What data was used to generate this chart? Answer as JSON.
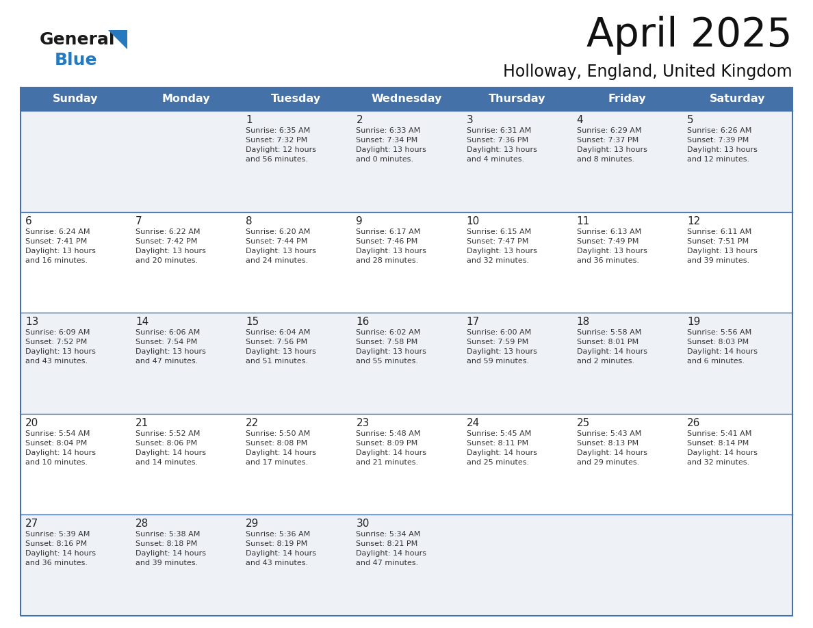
{
  "title": "April 2025",
  "subtitle": "Holloway, England, United Kingdom",
  "header_color": "#4472a8",
  "header_text_color": "#ffffff",
  "cell_bg_even": "#eef2f7",
  "cell_bg_odd": "#ffffff",
  "border_color": "#4472a8",
  "days_of_week": [
    "Sunday",
    "Monday",
    "Tuesday",
    "Wednesday",
    "Thursday",
    "Friday",
    "Saturday"
  ],
  "weeks": [
    [
      {
        "day": "",
        "info": ""
      },
      {
        "day": "",
        "info": ""
      },
      {
        "day": "1",
        "info": "Sunrise: 6:35 AM\nSunset: 7:32 PM\nDaylight: 12 hours\nand 56 minutes."
      },
      {
        "day": "2",
        "info": "Sunrise: 6:33 AM\nSunset: 7:34 PM\nDaylight: 13 hours\nand 0 minutes."
      },
      {
        "day": "3",
        "info": "Sunrise: 6:31 AM\nSunset: 7:36 PM\nDaylight: 13 hours\nand 4 minutes."
      },
      {
        "day": "4",
        "info": "Sunrise: 6:29 AM\nSunset: 7:37 PM\nDaylight: 13 hours\nand 8 minutes."
      },
      {
        "day": "5",
        "info": "Sunrise: 6:26 AM\nSunset: 7:39 PM\nDaylight: 13 hours\nand 12 minutes."
      }
    ],
    [
      {
        "day": "6",
        "info": "Sunrise: 6:24 AM\nSunset: 7:41 PM\nDaylight: 13 hours\nand 16 minutes."
      },
      {
        "day": "7",
        "info": "Sunrise: 6:22 AM\nSunset: 7:42 PM\nDaylight: 13 hours\nand 20 minutes."
      },
      {
        "day": "8",
        "info": "Sunrise: 6:20 AM\nSunset: 7:44 PM\nDaylight: 13 hours\nand 24 minutes."
      },
      {
        "day": "9",
        "info": "Sunrise: 6:17 AM\nSunset: 7:46 PM\nDaylight: 13 hours\nand 28 minutes."
      },
      {
        "day": "10",
        "info": "Sunrise: 6:15 AM\nSunset: 7:47 PM\nDaylight: 13 hours\nand 32 minutes."
      },
      {
        "day": "11",
        "info": "Sunrise: 6:13 AM\nSunset: 7:49 PM\nDaylight: 13 hours\nand 36 minutes."
      },
      {
        "day": "12",
        "info": "Sunrise: 6:11 AM\nSunset: 7:51 PM\nDaylight: 13 hours\nand 39 minutes."
      }
    ],
    [
      {
        "day": "13",
        "info": "Sunrise: 6:09 AM\nSunset: 7:52 PM\nDaylight: 13 hours\nand 43 minutes."
      },
      {
        "day": "14",
        "info": "Sunrise: 6:06 AM\nSunset: 7:54 PM\nDaylight: 13 hours\nand 47 minutes."
      },
      {
        "day": "15",
        "info": "Sunrise: 6:04 AM\nSunset: 7:56 PM\nDaylight: 13 hours\nand 51 minutes."
      },
      {
        "day": "16",
        "info": "Sunrise: 6:02 AM\nSunset: 7:58 PM\nDaylight: 13 hours\nand 55 minutes."
      },
      {
        "day": "17",
        "info": "Sunrise: 6:00 AM\nSunset: 7:59 PM\nDaylight: 13 hours\nand 59 minutes."
      },
      {
        "day": "18",
        "info": "Sunrise: 5:58 AM\nSunset: 8:01 PM\nDaylight: 14 hours\nand 2 minutes."
      },
      {
        "day": "19",
        "info": "Sunrise: 5:56 AM\nSunset: 8:03 PM\nDaylight: 14 hours\nand 6 minutes."
      }
    ],
    [
      {
        "day": "20",
        "info": "Sunrise: 5:54 AM\nSunset: 8:04 PM\nDaylight: 14 hours\nand 10 minutes."
      },
      {
        "day": "21",
        "info": "Sunrise: 5:52 AM\nSunset: 8:06 PM\nDaylight: 14 hours\nand 14 minutes."
      },
      {
        "day": "22",
        "info": "Sunrise: 5:50 AM\nSunset: 8:08 PM\nDaylight: 14 hours\nand 17 minutes."
      },
      {
        "day": "23",
        "info": "Sunrise: 5:48 AM\nSunset: 8:09 PM\nDaylight: 14 hours\nand 21 minutes."
      },
      {
        "day": "24",
        "info": "Sunrise: 5:45 AM\nSunset: 8:11 PM\nDaylight: 14 hours\nand 25 minutes."
      },
      {
        "day": "25",
        "info": "Sunrise: 5:43 AM\nSunset: 8:13 PM\nDaylight: 14 hours\nand 29 minutes."
      },
      {
        "day": "26",
        "info": "Sunrise: 5:41 AM\nSunset: 8:14 PM\nDaylight: 14 hours\nand 32 minutes."
      }
    ],
    [
      {
        "day": "27",
        "info": "Sunrise: 5:39 AM\nSunset: 8:16 PM\nDaylight: 14 hours\nand 36 minutes."
      },
      {
        "day": "28",
        "info": "Sunrise: 5:38 AM\nSunset: 8:18 PM\nDaylight: 14 hours\nand 39 minutes."
      },
      {
        "day": "29",
        "info": "Sunrise: 5:36 AM\nSunset: 8:19 PM\nDaylight: 14 hours\nand 43 minutes."
      },
      {
        "day": "30",
        "info": "Sunrise: 5:34 AM\nSunset: 8:21 PM\nDaylight: 14 hours\nand 47 minutes."
      },
      {
        "day": "",
        "info": ""
      },
      {
        "day": "",
        "info": ""
      },
      {
        "day": "",
        "info": ""
      }
    ]
  ],
  "logo_general_color": "#1a1a1a",
  "logo_blue_color": "#2779bd",
  "logo_triangle_color": "#2779bd"
}
